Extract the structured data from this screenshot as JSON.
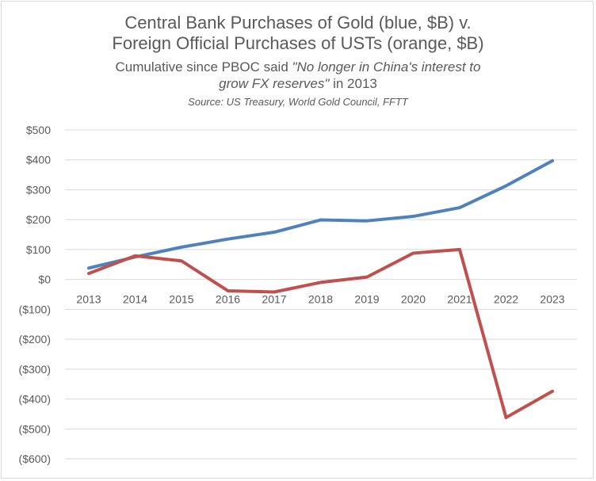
{
  "header": {
    "title_line1": "Central Bank Purchases of Gold (blue, $B) v.",
    "title_line2": "Foreign Official Purchases of USTs (orange, $B)",
    "subtitle_prefix": "Cumulative since PBOC said ",
    "subtitle_quote_a": "\"No longer in China's interest to",
    "subtitle_quote_b": "grow FX reserves\"",
    "subtitle_suffix": " in 2013",
    "source": "Source: US Treasury, World Gold Council, FFTT"
  },
  "chart_data": {
    "type": "line",
    "title": "Central Bank Purchases of Gold (blue, $B) v. Foreign Official Purchases of USTs (orange, $B)",
    "categories": [
      "2013",
      "2014",
      "2015",
      "2016",
      "2017",
      "2018",
      "2019",
      "2020",
      "2021",
      "2022",
      "2023"
    ],
    "series": [
      {
        "color": "#4f81bd",
        "values": [
          38,
          75,
          108,
          135,
          158,
          199,
          196,
          211,
          240,
          313,
          397
        ]
      },
      {
        "color": "#c0504d",
        "values": [
          20,
          79,
          62,
          -38,
          -42,
          -10,
          8,
          88,
          100,
          -462,
          -374
        ]
      }
    ],
    "ylim": [
      -600,
      500
    ],
    "yticks": [
      {
        "v": 500,
        "label": "$500"
      },
      {
        "v": 400,
        "label": "$400"
      },
      {
        "v": 300,
        "label": "$300"
      },
      {
        "v": 200,
        "label": "$200"
      },
      {
        "v": 100,
        "label": "$100"
      },
      {
        "v": 0,
        "label": "$0"
      },
      {
        "v": -100,
        "label": "($100)"
      },
      {
        "v": -200,
        "label": "($200)"
      },
      {
        "v": -300,
        "label": "($300)"
      },
      {
        "v": -400,
        "label": "($400)"
      },
      {
        "v": -500,
        "label": "($500)"
      },
      {
        "v": -600,
        "label": "($600)"
      }
    ],
    "grid": true,
    "xlabel": "",
    "ylabel": ""
  }
}
